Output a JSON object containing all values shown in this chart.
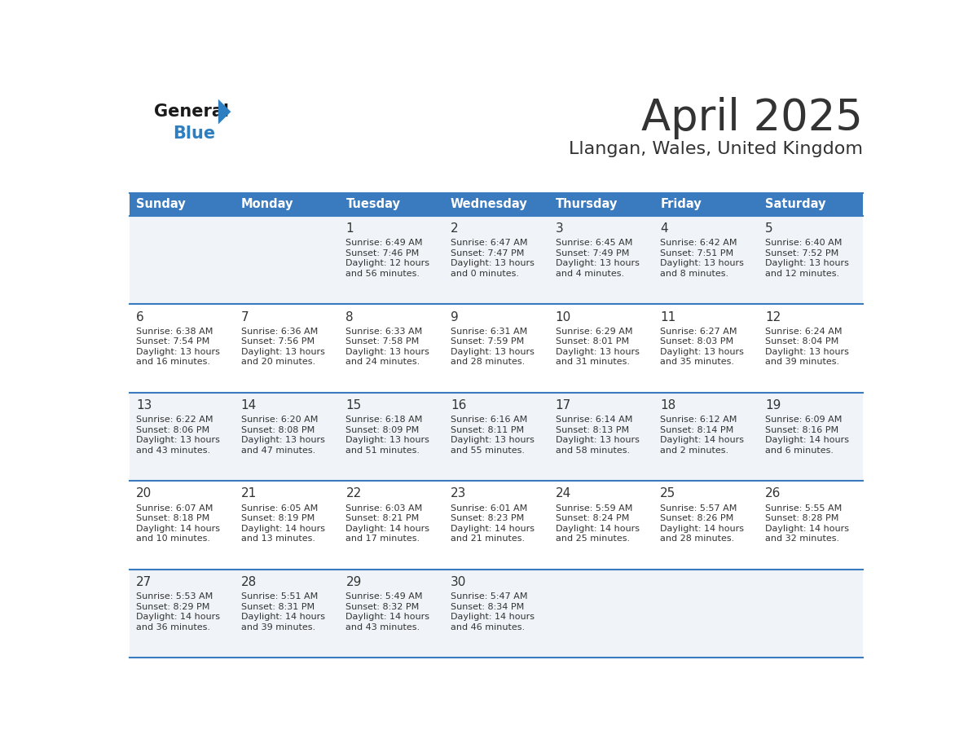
{
  "title": "April 2025",
  "subtitle": "Llangan, Wales, United Kingdom",
  "header_color": "#3a7abf",
  "header_text_color": "#ffffff",
  "day_names": [
    "Sunday",
    "Monday",
    "Tuesday",
    "Wednesday",
    "Thursday",
    "Friday",
    "Saturday"
  ],
  "row_bg_even": "#f0f4f8",
  "row_bg_odd": "#ffffff",
  "cell_text_color": "#333333",
  "date_color": "#333333",
  "border_color": "#3a7abf",
  "logo_general_color": "#1a1a1a",
  "logo_blue_color": "#2e7fc1",
  "days": [
    {
      "date": 1,
      "col": 2,
      "row": 0,
      "sunrise": "6:49 AM",
      "sunset": "7:46 PM",
      "daylight_h": "12 hours",
      "daylight_m": "and 56 minutes."
    },
    {
      "date": 2,
      "col": 3,
      "row": 0,
      "sunrise": "6:47 AM",
      "sunset": "7:47 PM",
      "daylight_h": "13 hours",
      "daylight_m": "and 0 minutes."
    },
    {
      "date": 3,
      "col": 4,
      "row": 0,
      "sunrise": "6:45 AM",
      "sunset": "7:49 PM",
      "daylight_h": "13 hours",
      "daylight_m": "and 4 minutes."
    },
    {
      "date": 4,
      "col": 5,
      "row": 0,
      "sunrise": "6:42 AM",
      "sunset": "7:51 PM",
      "daylight_h": "13 hours",
      "daylight_m": "and 8 minutes."
    },
    {
      "date": 5,
      "col": 6,
      "row": 0,
      "sunrise": "6:40 AM",
      "sunset": "7:52 PM",
      "daylight_h": "13 hours",
      "daylight_m": "and 12 minutes."
    },
    {
      "date": 6,
      "col": 0,
      "row": 1,
      "sunrise": "6:38 AM",
      "sunset": "7:54 PM",
      "daylight_h": "13 hours",
      "daylight_m": "and 16 minutes."
    },
    {
      "date": 7,
      "col": 1,
      "row": 1,
      "sunrise": "6:36 AM",
      "sunset": "7:56 PM",
      "daylight_h": "13 hours",
      "daylight_m": "and 20 minutes."
    },
    {
      "date": 8,
      "col": 2,
      "row": 1,
      "sunrise": "6:33 AM",
      "sunset": "7:58 PM",
      "daylight_h": "13 hours",
      "daylight_m": "and 24 minutes."
    },
    {
      "date": 9,
      "col": 3,
      "row": 1,
      "sunrise": "6:31 AM",
      "sunset": "7:59 PM",
      "daylight_h": "13 hours",
      "daylight_m": "and 28 minutes."
    },
    {
      "date": 10,
      "col": 4,
      "row": 1,
      "sunrise": "6:29 AM",
      "sunset": "8:01 PM",
      "daylight_h": "13 hours",
      "daylight_m": "and 31 minutes."
    },
    {
      "date": 11,
      "col": 5,
      "row": 1,
      "sunrise": "6:27 AM",
      "sunset": "8:03 PM",
      "daylight_h": "13 hours",
      "daylight_m": "and 35 minutes."
    },
    {
      "date": 12,
      "col": 6,
      "row": 1,
      "sunrise": "6:24 AM",
      "sunset": "8:04 PM",
      "daylight_h": "13 hours",
      "daylight_m": "and 39 minutes."
    },
    {
      "date": 13,
      "col": 0,
      "row": 2,
      "sunrise": "6:22 AM",
      "sunset": "8:06 PM",
      "daylight_h": "13 hours",
      "daylight_m": "and 43 minutes."
    },
    {
      "date": 14,
      "col": 1,
      "row": 2,
      "sunrise": "6:20 AM",
      "sunset": "8:08 PM",
      "daylight_h": "13 hours",
      "daylight_m": "and 47 minutes."
    },
    {
      "date": 15,
      "col": 2,
      "row": 2,
      "sunrise": "6:18 AM",
      "sunset": "8:09 PM",
      "daylight_h": "13 hours",
      "daylight_m": "and 51 minutes."
    },
    {
      "date": 16,
      "col": 3,
      "row": 2,
      "sunrise": "6:16 AM",
      "sunset": "8:11 PM",
      "daylight_h": "13 hours",
      "daylight_m": "and 55 minutes."
    },
    {
      "date": 17,
      "col": 4,
      "row": 2,
      "sunrise": "6:14 AM",
      "sunset": "8:13 PM",
      "daylight_h": "13 hours",
      "daylight_m": "and 58 minutes."
    },
    {
      "date": 18,
      "col": 5,
      "row": 2,
      "sunrise": "6:12 AM",
      "sunset": "8:14 PM",
      "daylight_h": "14 hours",
      "daylight_m": "and 2 minutes."
    },
    {
      "date": 19,
      "col": 6,
      "row": 2,
      "sunrise": "6:09 AM",
      "sunset": "8:16 PM",
      "daylight_h": "14 hours",
      "daylight_m": "and 6 minutes."
    },
    {
      "date": 20,
      "col": 0,
      "row": 3,
      "sunrise": "6:07 AM",
      "sunset": "8:18 PM",
      "daylight_h": "14 hours",
      "daylight_m": "and 10 minutes."
    },
    {
      "date": 21,
      "col": 1,
      "row": 3,
      "sunrise": "6:05 AM",
      "sunset": "8:19 PM",
      "daylight_h": "14 hours",
      "daylight_m": "and 13 minutes."
    },
    {
      "date": 22,
      "col": 2,
      "row": 3,
      "sunrise": "6:03 AM",
      "sunset": "8:21 PM",
      "daylight_h": "14 hours",
      "daylight_m": "and 17 minutes."
    },
    {
      "date": 23,
      "col": 3,
      "row": 3,
      "sunrise": "6:01 AM",
      "sunset": "8:23 PM",
      "daylight_h": "14 hours",
      "daylight_m": "and 21 minutes."
    },
    {
      "date": 24,
      "col": 4,
      "row": 3,
      "sunrise": "5:59 AM",
      "sunset": "8:24 PM",
      "daylight_h": "14 hours",
      "daylight_m": "and 25 minutes."
    },
    {
      "date": 25,
      "col": 5,
      "row": 3,
      "sunrise": "5:57 AM",
      "sunset": "8:26 PM",
      "daylight_h": "14 hours",
      "daylight_m": "and 28 minutes."
    },
    {
      "date": 26,
      "col": 6,
      "row": 3,
      "sunrise": "5:55 AM",
      "sunset": "8:28 PM",
      "daylight_h": "14 hours",
      "daylight_m": "and 32 minutes."
    },
    {
      "date": 27,
      "col": 0,
      "row": 4,
      "sunrise": "5:53 AM",
      "sunset": "8:29 PM",
      "daylight_h": "14 hours",
      "daylight_m": "and 36 minutes."
    },
    {
      "date": 28,
      "col": 1,
      "row": 4,
      "sunrise": "5:51 AM",
      "sunset": "8:31 PM",
      "daylight_h": "14 hours",
      "daylight_m": "and 39 minutes."
    },
    {
      "date": 29,
      "col": 2,
      "row": 4,
      "sunrise": "5:49 AM",
      "sunset": "8:32 PM",
      "daylight_h": "14 hours",
      "daylight_m": "and 43 minutes."
    },
    {
      "date": 30,
      "col": 3,
      "row": 4,
      "sunrise": "5:47 AM",
      "sunset": "8:34 PM",
      "daylight_h": "14 hours",
      "daylight_m": "and 46 minutes."
    }
  ]
}
